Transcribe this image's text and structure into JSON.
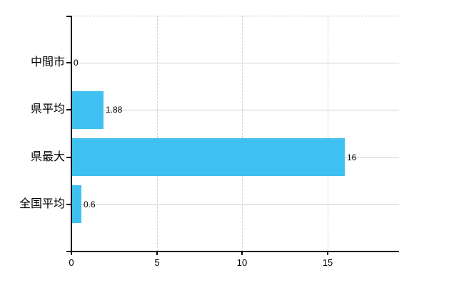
{
  "chart_data": {
    "type": "bar",
    "orientation": "horizontal",
    "title": "",
    "xlabel": "",
    "ylabel": "",
    "categories": [
      "中間市",
      "県平均",
      "県最大",
      "全国平均"
    ],
    "values": [
      0,
      1.88,
      16,
      0.6
    ],
    "value_labels": [
      "0",
      "1.88",
      "16",
      "0.6"
    ],
    "x_ticks": [
      0,
      5,
      10,
      15
    ],
    "x_tick_labels": [
      "0",
      "5",
      "10",
      "15"
    ],
    "grid_x_values": [
      5,
      10,
      15
    ],
    "xlim": [
      0,
      19.2
    ],
    "grid": true,
    "legend": false,
    "bar_color": "#3ec1f0"
  },
  "colors": {
    "background": "#ffffff",
    "bar": "#3ec1f0",
    "axis": "#000000",
    "grid_horizontal": "#ccd3c7",
    "grid_vertical": "#d5cbd5",
    "top_border": "#cfc8cf",
    "text": "#000000"
  }
}
